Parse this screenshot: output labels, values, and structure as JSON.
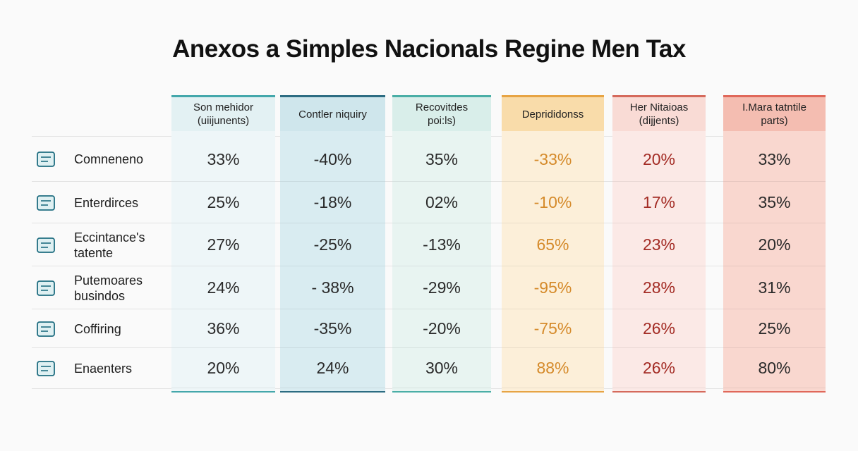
{
  "header": {
    "title": "Anexos a Simples Nacionals Regine Men Tax"
  },
  "table": {
    "columns": [
      {
        "header": "Son mehidor\n(uiijunents)"
      },
      {
        "header": "Contler niquiry"
      },
      {
        "header": "Recovitdes\npoi:ls)"
      },
      {
        "header": "Deprididonss"
      },
      {
        "header": "Her Nitaioas\n(dijjents)"
      },
      {
        "header": "I.Mara tatntile\nparts)"
      }
    ],
    "rows": [
      {
        "label": "Comneneno",
        "values": [
          "33%",
          "-40%",
          "35%",
          "-33%",
          "20%",
          "33%"
        ]
      },
      {
        "label": "Enterdirces",
        "values": [
          "25%",
          "-18%",
          "02%",
          "-10%",
          "17%",
          "35%"
        ]
      },
      {
        "label": "Eccintance's\ntatente",
        "values": [
          "27%",
          "-25%",
          "-13%",
          "65%",
          "23%",
          "20%"
        ]
      },
      {
        "label": "Putemoares\nbusindos",
        "values": [
          "24%",
          "- 38%",
          "-29%",
          "-95%",
          "28%",
          "31%"
        ]
      },
      {
        "label": "Coffiring",
        "values": [
          "36%",
          "-35%",
          "-20%",
          "-75%",
          "26%",
          "25%"
        ]
      },
      {
        "label": "Enaenters",
        "values": [
          "20%",
          "24%",
          "30%",
          "88%",
          "26%",
          "80%"
        ]
      }
    ]
  }
}
